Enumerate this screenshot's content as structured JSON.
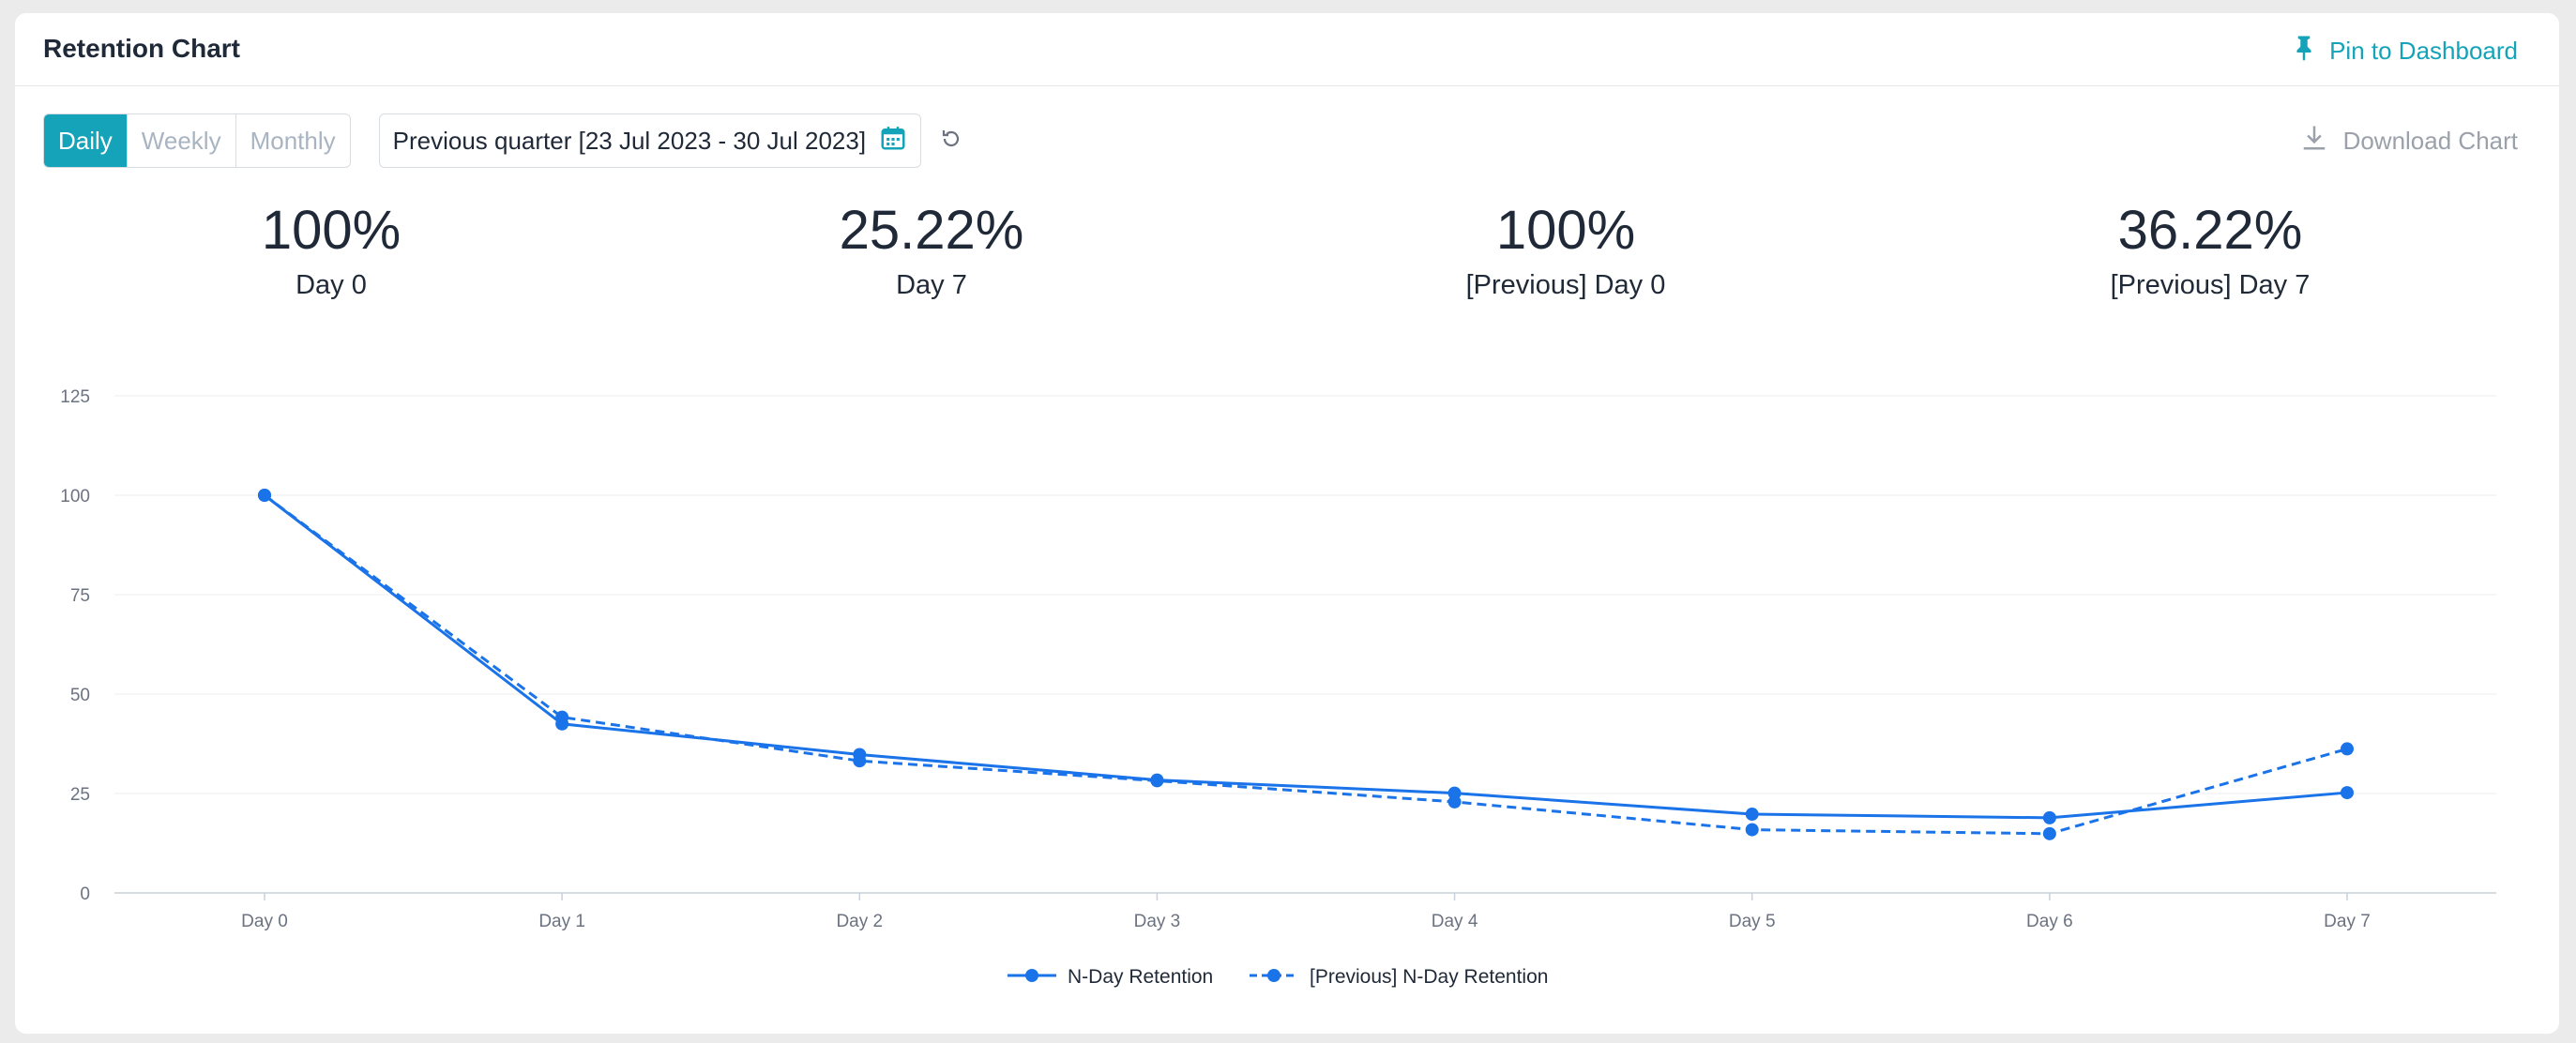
{
  "header": {
    "title": "Retention Chart",
    "pin_label": "Pin to Dashboard"
  },
  "toolbar": {
    "granularity": [
      {
        "label": "Daily",
        "active": true
      },
      {
        "label": "Weekly",
        "active": false
      },
      {
        "label": "Monthly",
        "active": false
      }
    ],
    "date_range": "Previous quarter [23 Jul 2023 - 30 Jul 2023]",
    "download_label": "Download Chart"
  },
  "stats": [
    {
      "value": "100%",
      "label": "Day 0"
    },
    {
      "value": "25.22%",
      "label": "Day 7"
    },
    {
      "value": "100%",
      "label": "[Previous] Day 0"
    },
    {
      "value": "36.22%",
      "label": "[Previous] Day 7"
    }
  ],
  "colors": {
    "accent": "#14a3b8",
    "series": "#1a73e8"
  },
  "chart_data": {
    "type": "line",
    "categories": [
      "Day 0",
      "Day 1",
      "Day 2",
      "Day 3",
      "Day 4",
      "Day 5",
      "Day 6",
      "Day 7"
    ],
    "series": [
      {
        "name": "N-Day Retention",
        "style": "solid",
        "values": [
          100,
          42.5,
          34.8,
          28.4,
          25.1,
          19.8,
          18.9,
          25.22
        ]
      },
      {
        "name": "[Previous] N-Day Retention",
        "style": "dashed",
        "values": [
          100,
          44.2,
          33.2,
          28.2,
          22.9,
          15.9,
          14.9,
          36.22
        ]
      }
    ],
    "yticks": [
      0,
      25,
      50,
      75,
      100,
      125
    ],
    "ylim": [
      0,
      125
    ],
    "grid": true,
    "legend": "bottom-center"
  }
}
